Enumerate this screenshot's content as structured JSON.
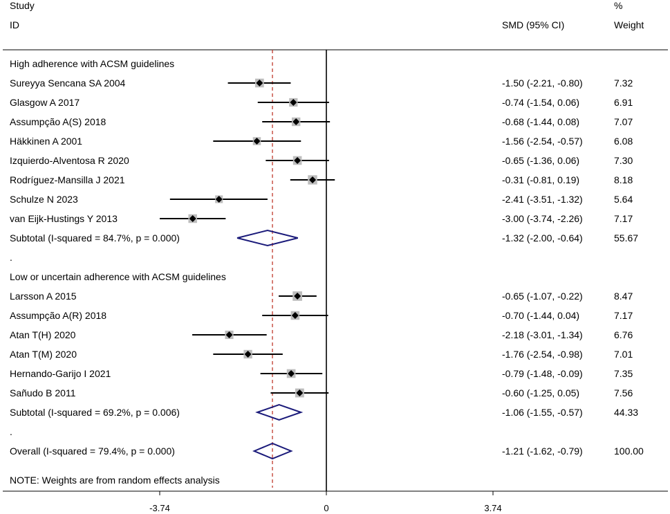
{
  "header": {
    "study_label": "Study",
    "id_label": "ID",
    "smd_label": "SMD (95% CI)",
    "pct_label": "%",
    "weight_label": "Weight"
  },
  "note": "NOTE: Weights are from random effects analysis",
  "colors": {
    "null_line": "#000000",
    "overall_line": "#c0392b",
    "diamond": "#1a1a7a",
    "box": "#bdbdbd"
  },
  "chart_data": {
    "type": "forest",
    "xlabel": "",
    "ylabel": "",
    "xlim": [
      -3.74,
      3.74
    ],
    "xticks": [
      "-3.74",
      "0",
      "3.74"
    ],
    "overall_estimate": -1.21,
    "rows": [
      {
        "kind": "group",
        "label": "High adherence with ACSM guidelines"
      },
      {
        "kind": "study",
        "label": "Sureyya Sencana SA 2004",
        "est": -1.5,
        "lo": -2.21,
        "hi": -0.8,
        "ci_text": "-1.50 (-2.21, -0.80)",
        "weight": 7.32,
        "weight_text": "7.32"
      },
      {
        "kind": "study",
        "label": "Glasgow A 2017",
        "est": -0.74,
        "lo": -1.54,
        "hi": 0.06,
        "ci_text": "-0.74 (-1.54, 0.06)",
        "weight": 6.91,
        "weight_text": "6.91"
      },
      {
        "kind": "study",
        "label": "Assumpção A(S) 2018",
        "est": -0.68,
        "lo": -1.44,
        "hi": 0.08,
        "ci_text": "-0.68 (-1.44, 0.08)",
        "weight": 7.07,
        "weight_text": "7.07"
      },
      {
        "kind": "study",
        "label": "Häkkinen A 2001",
        "est": -1.56,
        "lo": -2.54,
        "hi": -0.57,
        "ci_text": "-1.56 (-2.54, -0.57)",
        "weight": 6.08,
        "weight_text": "6.08"
      },
      {
        "kind": "study",
        "label": "Izquierdo-Alventosa R 2020",
        "est": -0.65,
        "lo": -1.36,
        "hi": 0.06,
        "ci_text": "-0.65 (-1.36, 0.06)",
        "weight": 7.3,
        "weight_text": "7.30"
      },
      {
        "kind": "study",
        "label": "Rodríguez-Mansilla J 2021",
        "est": -0.31,
        "lo": -0.81,
        "hi": 0.19,
        "ci_text": "-0.31 (-0.81, 0.19)",
        "weight": 8.18,
        "weight_text": "8.18"
      },
      {
        "kind": "study",
        "label": "Schulze N 2023",
        "est": -2.41,
        "lo": -3.51,
        "hi": -1.32,
        "ci_text": "-2.41 (-3.51, -1.32)",
        "weight": 5.64,
        "weight_text": "5.64"
      },
      {
        "kind": "study",
        "label": "van Eijk-Hustings Y 2013",
        "est": -3.0,
        "lo": -3.74,
        "hi": -2.26,
        "ci_text": "-3.00 (-3.74, -2.26)",
        "weight": 7.17,
        "weight_text": "7.17"
      },
      {
        "kind": "subtotal",
        "label": "Subtotal  (I-squared = 84.7%, p = 0.000)",
        "est": -1.32,
        "lo": -2.0,
        "hi": -0.64,
        "ci_text": "-1.32 (-2.00, -0.64)",
        "weight": 55.67,
        "weight_text": "55.67"
      },
      {
        "kind": "spacer",
        "label": "."
      },
      {
        "kind": "group",
        "label": "Low or uncertain adherence with ACSM guidelines"
      },
      {
        "kind": "study",
        "label": "Larsson A 2015",
        "est": -0.65,
        "lo": -1.07,
        "hi": -0.22,
        "ci_text": "-0.65 (-1.07, -0.22)",
        "weight": 8.47,
        "weight_text": "8.47"
      },
      {
        "kind": "study",
        "label": "Assumpção A(R) 2018",
        "est": -0.7,
        "lo": -1.44,
        "hi": 0.04,
        "ci_text": "-0.70 (-1.44, 0.04)",
        "weight": 7.17,
        "weight_text": "7.17"
      },
      {
        "kind": "study",
        "label": "Atan T(H) 2020",
        "est": -2.18,
        "lo": -3.01,
        "hi": -1.34,
        "ci_text": "-2.18 (-3.01, -1.34)",
        "weight": 6.76,
        "weight_text": "6.76"
      },
      {
        "kind": "study",
        "label": "Atan T(M) 2020",
        "est": -1.76,
        "lo": -2.54,
        "hi": -0.98,
        "ci_text": "-1.76 (-2.54, -0.98)",
        "weight": 7.01,
        "weight_text": "7.01"
      },
      {
        "kind": "study",
        "label": "Hernando-Garijo I 2021",
        "est": -0.79,
        "lo": -1.48,
        "hi": -0.09,
        "ci_text": "-0.79 (-1.48, -0.09)",
        "weight": 7.35,
        "weight_text": "7.35"
      },
      {
        "kind": "study",
        "label": "Sañudo B 2011",
        "est": -0.6,
        "lo": -1.25,
        "hi": 0.05,
        "ci_text": "-0.60 (-1.25, 0.05)",
        "weight": 7.56,
        "weight_text": "7.56"
      },
      {
        "kind": "subtotal",
        "label": "Subtotal  (I-squared = 69.2%, p = 0.006)",
        "est": -1.06,
        "lo": -1.55,
        "hi": -0.57,
        "ci_text": "-1.06 (-1.55, -0.57)",
        "weight": 44.33,
        "weight_text": "44.33"
      },
      {
        "kind": "spacer",
        "label": "."
      },
      {
        "kind": "overall",
        "label": "Overall  (I-squared = 79.4%, p = 0.000)",
        "est": -1.21,
        "lo": -1.62,
        "hi": -0.79,
        "ci_text": "-1.21 (-1.62, -0.79)",
        "weight": 100.0,
        "weight_text": "100.00"
      }
    ]
  }
}
